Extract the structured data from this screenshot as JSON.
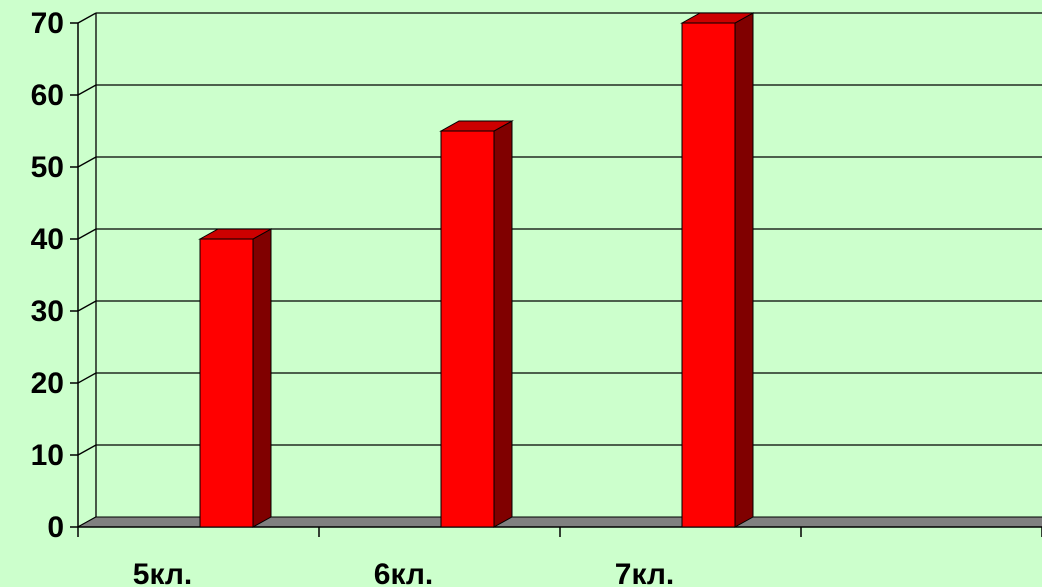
{
  "chart_data": {
    "type": "bar",
    "categories": [
      "5кл.",
      "6кл.",
      "7кл.",
      ""
    ],
    "values": [
      40,
      55,
      70,
      null
    ],
    "ylim": [
      0,
      70
    ],
    "yticks": [
      "0",
      "10",
      "20",
      "30",
      "40",
      "50",
      "60",
      "70"
    ],
    "grid": true,
    "legend": "none",
    "colors": {
      "background": "#ccffcc",
      "plot_back_wall": "#ccffcc",
      "bar_front": "#ff0000",
      "bar_side": "#800000",
      "bar_top": "#cc0000",
      "floor": "#808080",
      "gridline": "#000000"
    }
  }
}
